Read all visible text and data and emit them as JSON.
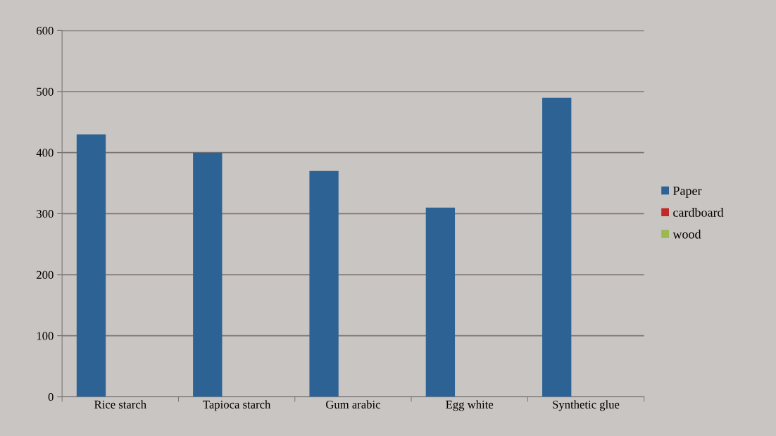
{
  "chart_data": {
    "type": "bar",
    "categories": [
      "Rice starch",
      "Tapioca starch",
      "Gum arabic",
      "Egg white",
      "Synthetic glue"
    ],
    "series": [
      {
        "name": "Paper",
        "color": "#2d6394",
        "values": [
          430,
          400,
          370,
          310,
          490
        ]
      },
      {
        "name": "cardboard",
        "color": "#c0282a",
        "values": [
          null,
          null,
          null,
          null,
          null
        ]
      },
      {
        "name": "wood",
        "color": "#9bb94e",
        "values": [
          null,
          null,
          null,
          null,
          null
        ]
      }
    ],
    "ylim": [
      0,
      600
    ],
    "yticks": [
      0,
      100,
      200,
      300,
      400,
      500,
      600
    ],
    "grid": "y",
    "legend": "right"
  }
}
